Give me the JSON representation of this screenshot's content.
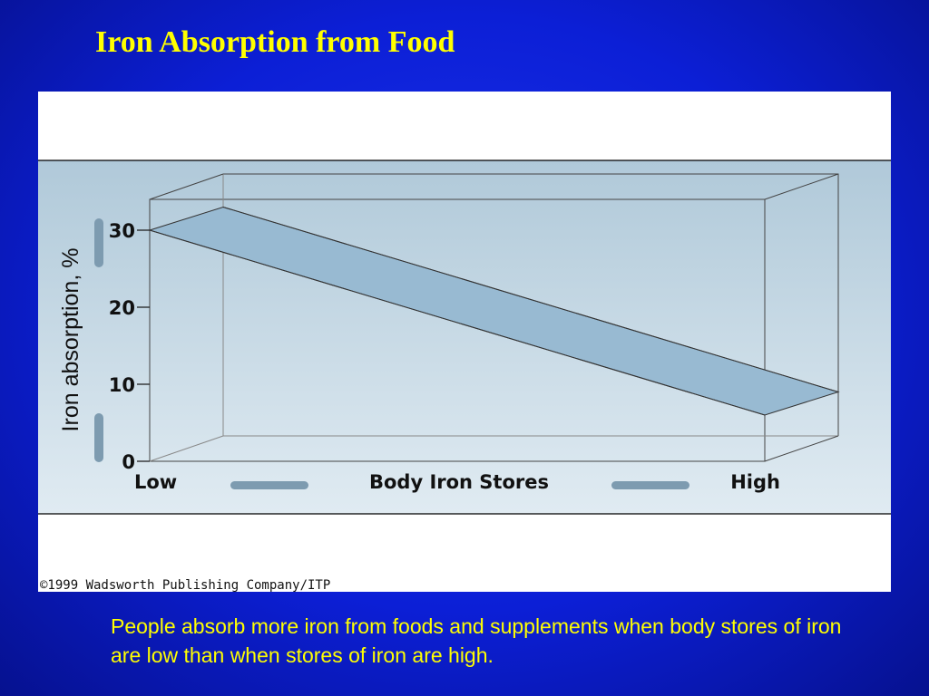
{
  "slide": {
    "title": "Iron Absorption from Food",
    "caption": "People absorb more iron from foods and supplements when body stores of iron are low than when stores of iron are high.",
    "colors": {
      "background": "#0c1fd6",
      "title_text": "#ffff00",
      "caption_text": "#ffff00",
      "band_fill": "#98bad2",
      "plot_background_top": "#b0c9d9",
      "plot_background_bottom": "#e0ebf2",
      "axis_arrow": "#7d9bb0"
    }
  },
  "figure": {
    "credit": "©1999 Wadsworth Publishing Company/ITP"
  },
  "chart_data": {
    "type": "area",
    "style": "3d-band",
    "title": "",
    "ylabel": "Iron absorption, %",
    "xlabel": "Body Iron Stores",
    "x_tick_labels": [
      "Low",
      "High"
    ],
    "y_ticks": [
      0,
      10,
      20,
      30
    ],
    "y_tick_labels": [
      "0",
      "10",
      "20",
      "30"
    ],
    "ylim": [
      0,
      30
    ],
    "band": {
      "x": [
        "Low",
        "High"
      ],
      "upper": [
        33,
        9
      ],
      "lower": [
        30,
        6
      ]
    },
    "grid": false,
    "legend": "none"
  }
}
